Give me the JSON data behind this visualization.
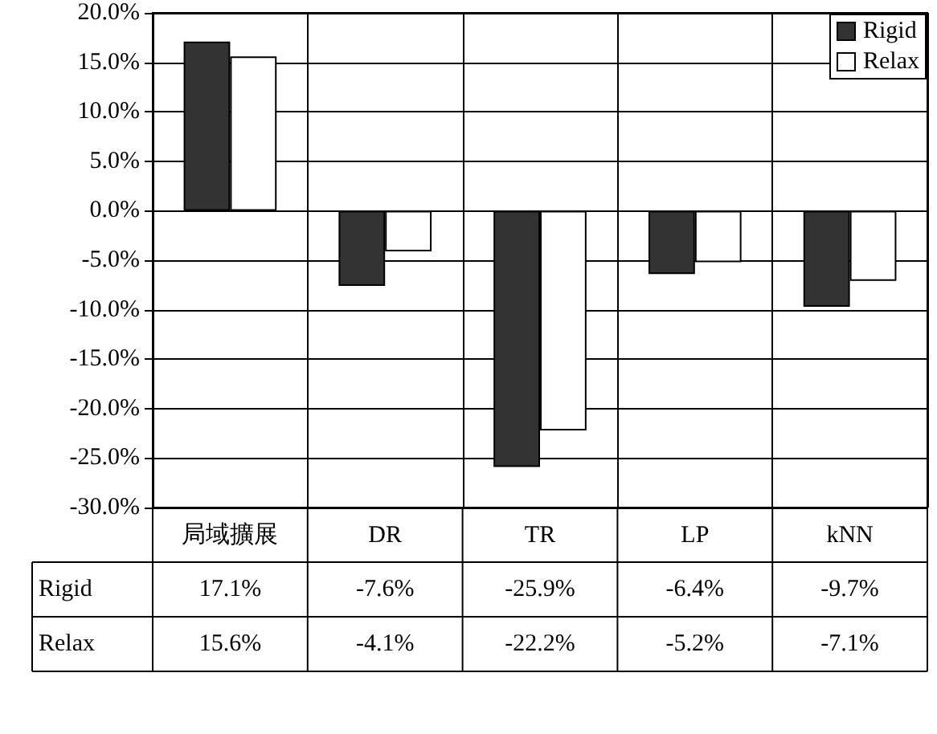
{
  "chart_data": {
    "type": "bar",
    "categories": [
      "局域擴展",
      "DR",
      "TR",
      "LP",
      "kNN"
    ],
    "series": [
      {
        "name": "Rigid",
        "color": "#333333",
        "values": [
          17.1,
          -7.6,
          -25.9,
          -6.4,
          -9.7
        ],
        "value_labels": [
          "17.1%",
          "-7.6%",
          "-25.9%",
          "-6.4%",
          "-9.7%"
        ]
      },
      {
        "name": "Relax",
        "color": "#ffffff",
        "values": [
          15.6,
          -4.1,
          -22.2,
          -5.2,
          -7.1
        ],
        "value_labels": [
          "15.6%",
          "-4.1%",
          "-22.2%",
          "-5.2%",
          "-7.1%"
        ]
      }
    ],
    "ylim": [
      -30,
      20
    ],
    "yticks": [
      {
        "value": -30,
        "label": "-30.0%"
      },
      {
        "value": -25,
        "label": "-25.0%"
      },
      {
        "value": -20,
        "label": "-20.0%"
      },
      {
        "value": -15,
        "label": "-15.0%"
      },
      {
        "value": -10,
        "label": "-10.0%"
      },
      {
        "value": -5,
        "label": "-5.0%"
      },
      {
        "value": 0,
        "label": "0.0%"
      },
      {
        "value": 5,
        "label": "5.0%"
      },
      {
        "value": 10,
        "label": "10.0%"
      },
      {
        "value": 15,
        "label": "15.0%"
      },
      {
        "value": 20,
        "label": "20.0%"
      }
    ],
    "grid": true,
    "legend": "top right"
  }
}
